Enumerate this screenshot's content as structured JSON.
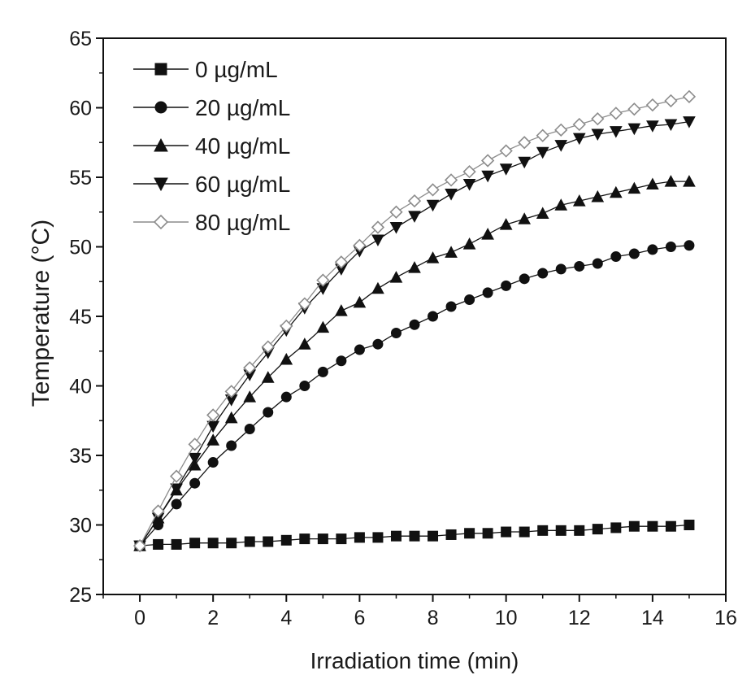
{
  "chart_data": {
    "type": "line",
    "xlabel": "Irradiation time (min)",
    "ylabel": "Temperature (°C)",
    "xlim": [
      -1,
      16
    ],
    "ylim": [
      25,
      65
    ],
    "xticks": [
      "0",
      "2",
      "4",
      "6",
      "8",
      "10",
      "12",
      "14",
      "16"
    ],
    "yticks": [
      "25",
      "30",
      "35",
      "40",
      "45",
      "50",
      "55",
      "60",
      "65"
    ],
    "legend_position": "top-left",
    "x": [
      0,
      0.5,
      1,
      1.5,
      2,
      2.5,
      3,
      3.5,
      4,
      4.5,
      5,
      5.5,
      6,
      6.5,
      7,
      7.5,
      8,
      8.5,
      9,
      9.5,
      10,
      10.5,
      11,
      11.5,
      12,
      12.5,
      13,
      13.5,
      14,
      14.5,
      15
    ],
    "series": [
      {
        "name": "0 µg/mL",
        "marker": "square",
        "values": [
          28.5,
          28.6,
          28.6,
          28.7,
          28.7,
          28.7,
          28.8,
          28.8,
          28.9,
          29.0,
          29.0,
          29.0,
          29.1,
          29.1,
          29.2,
          29.2,
          29.2,
          29.3,
          29.4,
          29.4,
          29.5,
          29.5,
          29.6,
          29.6,
          29.6,
          29.7,
          29.8,
          29.9,
          29.9,
          29.9,
          30.0
        ]
      },
      {
        "name": "20 µg/mL",
        "marker": "circle",
        "values": [
          28.5,
          30.0,
          31.5,
          33.0,
          34.5,
          35.7,
          36.9,
          38.1,
          39.2,
          40.0,
          41.0,
          41.8,
          42.6,
          43.0,
          43.8,
          44.4,
          45.0,
          45.7,
          46.2,
          46.7,
          47.2,
          47.7,
          48.1,
          48.4,
          48.6,
          48.8,
          49.3,
          49.5,
          49.8,
          50.0,
          50.1
        ]
      },
      {
        "name": "40 µg/mL",
        "marker": "triangle-up",
        "values": [
          28.5,
          30.5,
          32.5,
          34.3,
          36.1,
          37.7,
          39.2,
          40.6,
          41.9,
          43.0,
          44.2,
          45.4,
          46.0,
          47.0,
          47.8,
          48.5,
          49.2,
          49.6,
          50.2,
          50.9,
          51.6,
          52.0,
          52.4,
          53.0,
          53.3,
          53.6,
          53.9,
          54.2,
          54.5,
          54.7,
          54.7
        ]
      },
      {
        "name": "60 µg/mL",
        "marker": "triangle-down",
        "values": [
          28.5,
          30.5,
          32.6,
          34.8,
          37.1,
          39.0,
          40.8,
          42.4,
          44.0,
          45.6,
          47.0,
          48.4,
          49.7,
          50.5,
          51.4,
          52.2,
          53.0,
          53.8,
          54.5,
          55.1,
          55.6,
          56.1,
          56.8,
          57.3,
          57.8,
          58.1,
          58.3,
          58.5,
          58.7,
          58.8,
          59.0
        ]
      },
      {
        "name": "80 µg/mL",
        "marker": "diamond-open",
        "values": [
          28.5,
          31.0,
          33.5,
          35.8,
          37.9,
          39.6,
          41.3,
          42.8,
          44.3,
          45.9,
          47.6,
          48.9,
          50.1,
          51.4,
          52.5,
          53.3,
          54.1,
          54.8,
          55.4,
          56.2,
          56.9,
          57.5,
          58.0,
          58.4,
          58.8,
          59.2,
          59.6,
          59.9,
          60.2,
          60.5,
          60.8
        ]
      }
    ]
  }
}
